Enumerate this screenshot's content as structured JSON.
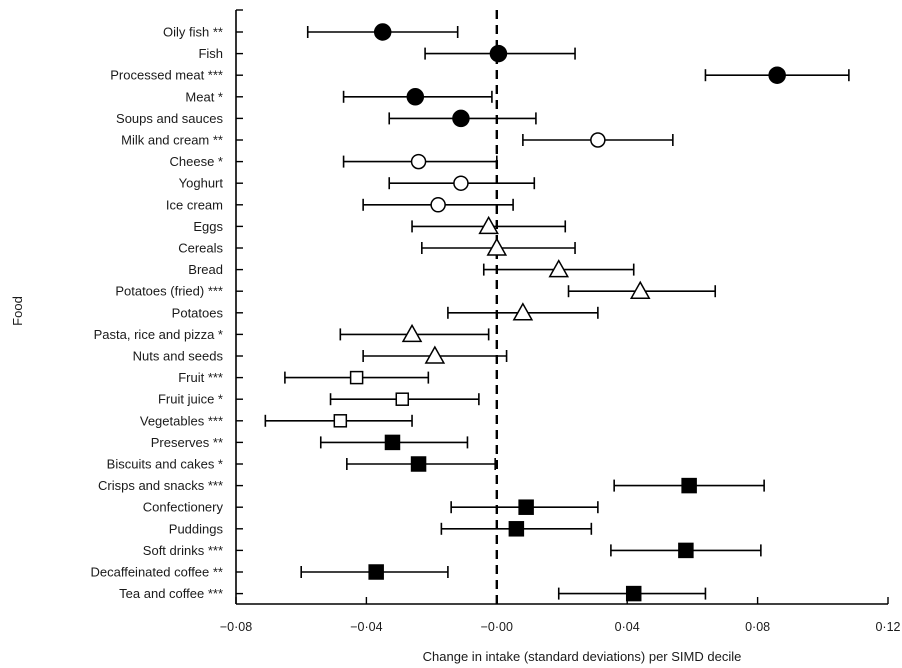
{
  "chart_data": {
    "type": "scatter",
    "subtype": "forest-plot",
    "xlabel": "Change in intake (standard deviations) per SIMD decile",
    "ylabel": "Food",
    "xlim": [
      -0.08,
      0.12
    ],
    "xticks": [
      -0.08,
      -0.04,
      0.0,
      0.04,
      0.08,
      0.12
    ],
    "xtick_labels": [
      "−0·08",
      "−0·04",
      "−0·00",
      "0·04",
      "0·08",
      "0·12"
    ],
    "reference_line": 0.0,
    "marker_styles": {
      "filled-circle": "#000000",
      "open-circle": "#ffffff",
      "open-triangle": "#ffffff",
      "open-square": "#ffffff",
      "filled-square": "#000000"
    },
    "rows": [
      {
        "label": "Oily fish **",
        "estimate": -0.035,
        "lower": -0.058,
        "upper": -0.012,
        "marker": "filled-circle"
      },
      {
        "label": "Fish",
        "estimate": 0.0005,
        "lower": -0.022,
        "upper": 0.024,
        "marker": "filled-circle"
      },
      {
        "label": "Processed meat ***",
        "estimate": 0.086,
        "lower": 0.064,
        "upper": 0.108,
        "marker": "filled-circle"
      },
      {
        "label": "Meat *",
        "estimate": -0.025,
        "lower": -0.047,
        "upper": -0.0015,
        "marker": "filled-circle"
      },
      {
        "label": "Soups and sauces",
        "estimate": -0.011,
        "lower": -0.033,
        "upper": 0.012,
        "marker": "filled-circle"
      },
      {
        "label": "Milk and cream **",
        "estimate": 0.031,
        "lower": 0.008,
        "upper": 0.054,
        "marker": "open-circle"
      },
      {
        "label": "Cheese *",
        "estimate": -0.024,
        "lower": -0.047,
        "upper": 0.0,
        "marker": "open-circle"
      },
      {
        "label": "Yoghurt",
        "estimate": -0.011,
        "lower": -0.033,
        "upper": 0.0115,
        "marker": "open-circle"
      },
      {
        "label": "Ice cream",
        "estimate": -0.018,
        "lower": -0.041,
        "upper": 0.005,
        "marker": "open-circle"
      },
      {
        "label": "Eggs",
        "estimate": -0.0025,
        "lower": -0.026,
        "upper": 0.021,
        "marker": "open-triangle"
      },
      {
        "label": "Cereals",
        "estimate": 0.0,
        "lower": -0.023,
        "upper": 0.024,
        "marker": "open-triangle"
      },
      {
        "label": "Bread",
        "estimate": 0.019,
        "lower": -0.004,
        "upper": 0.042,
        "marker": "open-triangle"
      },
      {
        "label": "Potatoes (fried) ***",
        "estimate": 0.044,
        "lower": 0.022,
        "upper": 0.067,
        "marker": "open-triangle"
      },
      {
        "label": "Potatoes",
        "estimate": 0.008,
        "lower": -0.015,
        "upper": 0.031,
        "marker": "open-triangle"
      },
      {
        "label": "Pasta, rice and pizza *",
        "estimate": -0.026,
        "lower": -0.048,
        "upper": -0.0025,
        "marker": "open-triangle"
      },
      {
        "label": "Nuts and seeds",
        "estimate": -0.019,
        "lower": -0.041,
        "upper": 0.003,
        "marker": "open-triangle"
      },
      {
        "label": "Fruit ***",
        "estimate": -0.043,
        "lower": -0.065,
        "upper": -0.021,
        "marker": "open-square"
      },
      {
        "label": "Fruit juice *",
        "estimate": -0.029,
        "lower": -0.051,
        "upper": -0.0055,
        "marker": "open-square"
      },
      {
        "label": "Vegetables ***",
        "estimate": -0.048,
        "lower": -0.071,
        "upper": -0.026,
        "marker": "open-square"
      },
      {
        "label": "Preserves **",
        "estimate": -0.032,
        "lower": -0.054,
        "upper": -0.009,
        "marker": "filled-square"
      },
      {
        "label": "Biscuits and cakes *",
        "estimate": -0.024,
        "lower": -0.046,
        "upper": -0.0005,
        "marker": "filled-square"
      },
      {
        "label": "Crisps and snacks ***",
        "estimate": 0.059,
        "lower": 0.036,
        "upper": 0.082,
        "marker": "filled-square"
      },
      {
        "label": "Confectionery",
        "estimate": 0.009,
        "lower": -0.014,
        "upper": 0.031,
        "marker": "filled-square"
      },
      {
        "label": "Puddings",
        "estimate": 0.006,
        "lower": -0.017,
        "upper": 0.029,
        "marker": "filled-square"
      },
      {
        "label": "Soft drinks ***",
        "estimate": 0.058,
        "lower": 0.035,
        "upper": 0.081,
        "marker": "filled-square"
      },
      {
        "label": "Decaffeinated coffee **",
        "estimate": -0.037,
        "lower": -0.06,
        "upper": -0.015,
        "marker": "filled-square"
      },
      {
        "label": "Tea and coffee ***",
        "estimate": 0.042,
        "lower": 0.019,
        "upper": 0.064,
        "marker": "filled-square"
      }
    ]
  }
}
